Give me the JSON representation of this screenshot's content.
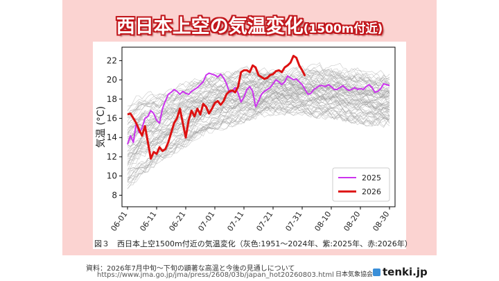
{
  "title": {
    "main": "西日本上空の気温変化",
    "sub": "(1500m付近)"
  },
  "caption": "図３　西日本上空1500m付近の気温変化（灰色:1951～2024年、紫:2025年、赤:2026年）",
  "source": {
    "label": "資料：2026年7月中旬～下旬の顕著な高温と今後の見通しについて",
    "url": "https://www.jma.go.jp/jma/press/2608/03b/japan_hot20260803.html"
  },
  "branding": {
    "jwa": "日本気象協会",
    "tenki": "tenki.jp"
  },
  "chart_data": {
    "type": "line",
    "ylabel": "気温 (°C)",
    "ylim": [
      6.8,
      23.4
    ],
    "yticks": [
      8,
      10,
      12,
      14,
      16,
      18,
      20,
      22
    ],
    "xticks": [
      "06-01",
      "06-11",
      "06-21",
      "07-01",
      "07-11",
      "07-21",
      "07-31",
      "08-10",
      "08-20",
      "08-30"
    ],
    "legend": {
      "position": "bottom-right"
    },
    "colors": {
      "2025": "#cc33ee",
      "2026": "#dd1111",
      "history": "#9a9a9a"
    },
    "background_band": {
      "label": "1951～2024年",
      "days": [
        1,
        6,
        11,
        16,
        21,
        26,
        31,
        36,
        41,
        46,
        51,
        56,
        61,
        66,
        71,
        76,
        81,
        86,
        91
      ],
      "low": [
        9.0,
        10.5,
        11.5,
        12.5,
        13.5,
        14.5,
        15.0,
        15.5,
        16.0,
        16.5,
        16.8,
        16.8,
        16.8,
        16.5,
        16.3,
        16.0,
        15.8,
        15.5,
        15.5
      ],
      "high": [
        17.5,
        18.5,
        18.5,
        19.0,
        19.5,
        20.0,
        20.5,
        20.8,
        21.0,
        21.0,
        21.0,
        20.8,
        21.0,
        21.2,
        21.3,
        21.0,
        20.8,
        20.5,
        20.5
      ]
    },
    "series": [
      {
        "name": "2025",
        "x": [
          1,
          2,
          3,
          4,
          5,
          6,
          7,
          8,
          9,
          10,
          11,
          12,
          13,
          14,
          15,
          16,
          17,
          18,
          19,
          20,
          21,
          22,
          23,
          24,
          25,
          26,
          27,
          28,
          29,
          30,
          31,
          32,
          33,
          34,
          35,
          36,
          37,
          38,
          39,
          40,
          41,
          42,
          43,
          44,
          45,
          46,
          47,
          48,
          49,
          50,
          51,
          52,
          53,
          54,
          55,
          56,
          57,
          58,
          59,
          60,
          61,
          62,
          63,
          64,
          65,
          66,
          67,
          68,
          69,
          70,
          71,
          72,
          73,
          74,
          75,
          76,
          77,
          78,
          79,
          80,
          81,
          82,
          83,
          84,
          85,
          86,
          87,
          88,
          89,
          90,
          91
        ],
        "values": [
          13.3,
          14.2,
          13.5,
          15.5,
          14.5,
          15.0,
          16.0,
          16.2,
          16.8,
          16.5,
          15.8,
          15.5,
          17.0,
          17.8,
          18.5,
          18.7,
          19.0,
          18.8,
          18.5,
          18.8,
          18.6,
          18.5,
          18.8,
          19.0,
          19.2,
          19.5,
          19.8,
          20.5,
          20.7,
          20.6,
          20.5,
          20.3,
          20.6,
          20.2,
          19.6,
          18.7,
          18.8,
          19.2,
          18.6,
          17.7,
          18.2,
          19.0,
          19.3,
          18.8,
          17.2,
          17.8,
          18.5,
          18.8,
          19.0,
          19.2,
          19.6,
          20.0,
          19.8,
          19.5,
          19.8,
          20.4,
          20.2,
          20.0,
          20.1,
          19.8,
          19.5,
          19.0,
          18.5,
          18.6,
          19.0,
          19.2,
          19.4,
          19.4,
          19.3,
          19.5,
          19.3,
          19.0,
          19.0,
          19.2,
          19.4,
          19.1,
          18.9,
          19.0,
          19.2,
          19.0,
          19.1,
          19.0,
          19.3,
          19.5,
          19.2,
          18.7,
          18.8,
          19.1,
          19.6,
          19.5,
          19.4
        ]
      },
      {
        "name": "2026",
        "x": [
          1,
          2,
          3,
          4,
          5,
          6,
          7,
          8,
          9,
          10,
          11,
          12,
          13,
          14,
          15,
          16,
          17,
          18,
          19,
          20,
          21,
          22,
          23,
          24,
          25,
          26,
          27,
          28,
          29,
          30,
          31,
          32,
          33,
          34,
          35,
          36,
          37,
          38,
          39,
          40,
          41,
          42,
          43,
          44,
          45,
          46,
          47,
          48,
          49,
          50,
          51,
          52,
          53,
          54,
          55,
          56,
          57,
          58,
          59,
          60,
          61,
          62
        ],
        "values": [
          16.4,
          16.5,
          16.0,
          15.5,
          14.8,
          14.2,
          15.2,
          13.5,
          11.8,
          12.5,
          12.3,
          13.0,
          12.6,
          12.8,
          13.5,
          14.5,
          15.5,
          16.0,
          17.0,
          15.5,
          14.0,
          15.8,
          16.8,
          16.2,
          17.0,
          16.4,
          17.5,
          17.2,
          16.5,
          17.0,
          17.6,
          17.8,
          17.4,
          17.8,
          18.5,
          18.8,
          18.9,
          18.7,
          19.3,
          20.8,
          21.0,
          21.0,
          20.8,
          21.5,
          21.3,
          20.5,
          20.3,
          20.1,
          20.2,
          20.5,
          20.6,
          20.9,
          21.0,
          20.8,
          21.3,
          21.5,
          21.8,
          22.5,
          22.3,
          21.5,
          21.0,
          20.4
        ]
      }
    ]
  }
}
